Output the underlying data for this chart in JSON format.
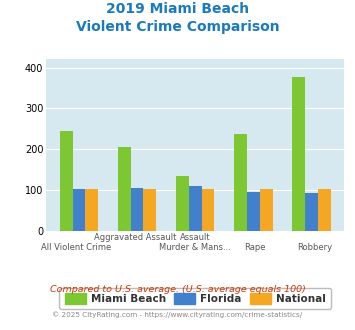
{
  "title_line1": "2019 Miami Beach",
  "title_line2": "Violent Crime Comparison",
  "miami_beach": [
    245,
    205,
    135,
    237,
    378
  ],
  "florida": [
    102,
    106,
    109,
    95,
    94
  ],
  "national": [
    102,
    102,
    103,
    104,
    102
  ],
  "bar_color_miami": "#7dc832",
  "bar_color_florida": "#4080cc",
  "bar_color_national": "#f5a623",
  "bg_color": "#d6e8f0",
  "title_color": "#1a7abf",
  "ylim": [
    0,
    420
  ],
  "yticks": [
    0,
    100,
    200,
    300,
    400
  ],
  "row1_labels": [
    "",
    "Aggravated Assault",
    "Assault",
    "",
    ""
  ],
  "row2_labels": [
    "All Violent Crime",
    "",
    "Murder & Mans...",
    "Rape",
    "Robbery"
  ],
  "footnote1": "Compared to U.S. average. (U.S. average equals 100)",
  "footnote2": "© 2025 CityRating.com - https://www.cityrating.com/crime-statistics/",
  "footnote1_color": "#cc3300",
  "footnote2_color": "#888888",
  "legend_labels": [
    "Miami Beach",
    "Florida",
    "National"
  ]
}
